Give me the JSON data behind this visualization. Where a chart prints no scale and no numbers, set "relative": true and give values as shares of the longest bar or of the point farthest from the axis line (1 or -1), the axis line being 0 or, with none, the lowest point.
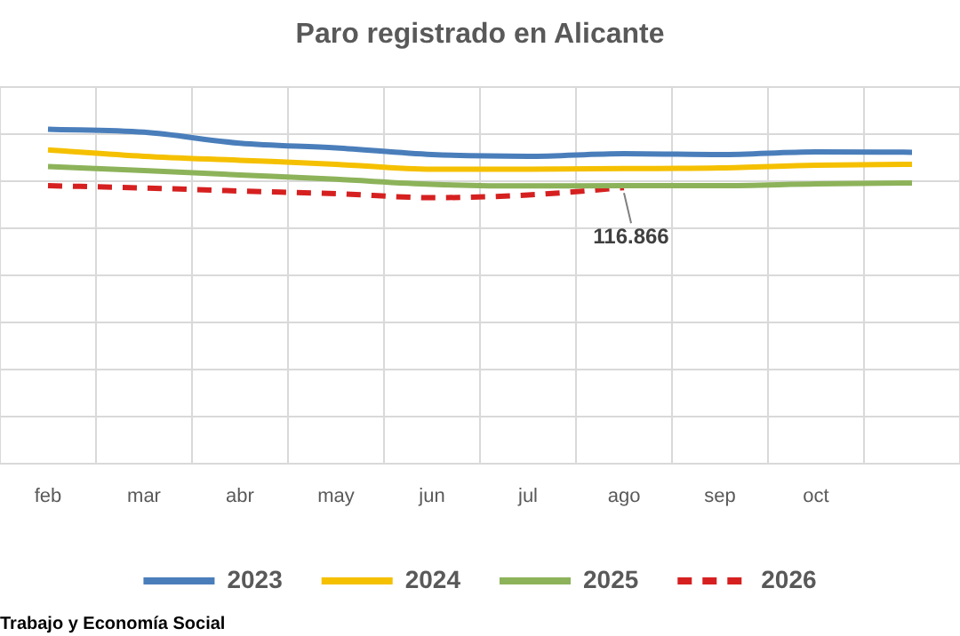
{
  "chart_data": {
    "type": "line",
    "title": "Paro registrado en Alicante",
    "relative": true,
    "categories": [
      "feb",
      "mar",
      "abr",
      "may",
      "jun",
      "jul",
      "ago",
      "sep",
      "oct",
      null
    ],
    "series": [
      {
        "name": "2023",
        "color": "#4a7ebb",
        "values": [
          1,
          0.991,
          0.958,
          0.944,
          0.924,
          0.919,
          0.927,
          0.924,
          0.932,
          0.931
        ]
      },
      {
        "name": "2024",
        "color": "#f5c000",
        "values": [
          0.938,
          0.919,
          0.907,
          0.895,
          0.88,
          0.88,
          0.882,
          0.884,
          0.892,
          0.895
        ]
      },
      {
        "name": "2025",
        "color": "#8db35a",
        "values": [
          0.888,
          0.876,
          0.863,
          0.85,
          0.835,
          0.83,
          0.831,
          0.831,
          0.836,
          0.839
        ]
      },
      {
        "name": "2026",
        "color": "#d62020",
        "line_style": "dashed",
        "values": [
          0.831,
          0.824,
          0.815,
          0.807,
          0.795,
          0.803,
          0.825,
          null,
          null,
          null
        ]
      }
    ],
    "grid": true,
    "legend": "bottom",
    "marker": "none",
    "annotations": [
      {
        "text": "116.866",
        "x": "ago"
      },
      "Trabajo y Economía Social"
    ]
  }
}
